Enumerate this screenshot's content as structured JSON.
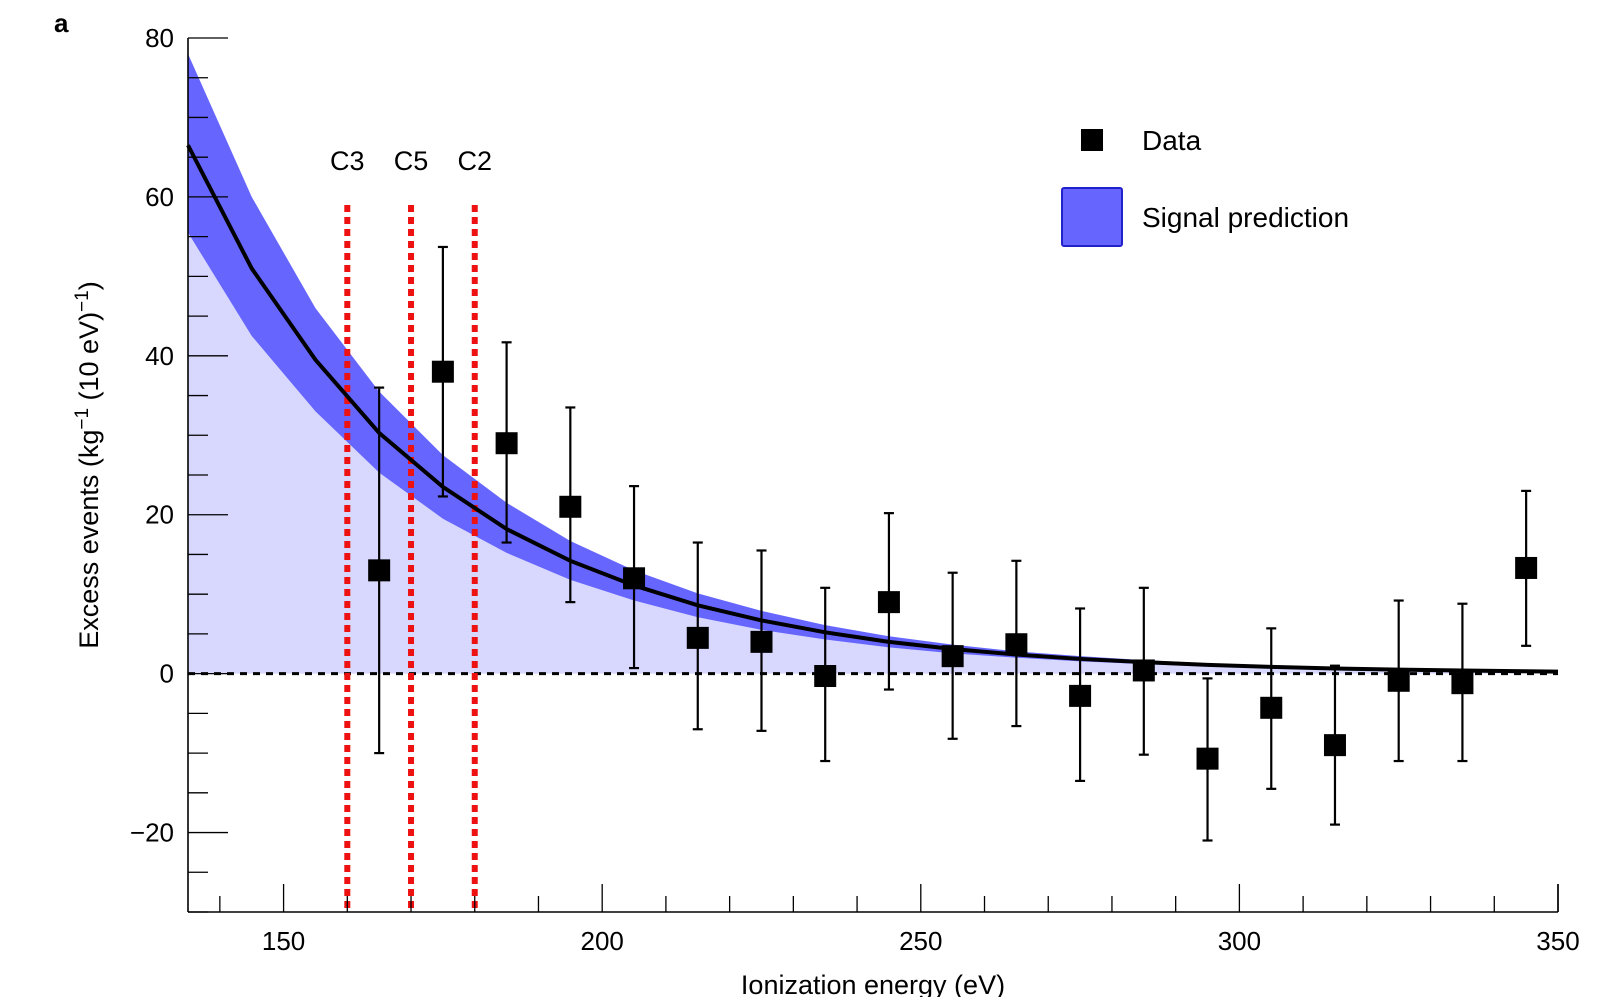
{
  "panel_label": "a",
  "chart_data": {
    "type": "scatter",
    "title": "",
    "xlabel": "Ionization energy (eV)",
    "ylabel_parts": [
      "Excess events (kg",
      "−1",
      " (10 eV)",
      "−1",
      ")"
    ],
    "xlim": [
      135,
      350
    ],
    "ylim": [
      -30,
      80
    ],
    "x_ticks": [
      150,
      200,
      250,
      300,
      350
    ],
    "x_tick_labels": [
      "150",
      "200",
      "250",
      "300",
      "350"
    ],
    "y_ticks": [
      -20,
      0,
      20,
      40,
      60,
      80
    ],
    "y_tick_labels": [
      "−20",
      "0",
      "20",
      "40",
      "60",
      "80"
    ],
    "grid": false,
    "legend_position": "top-right",
    "legend": [
      {
        "name": "Data",
        "marker": "square",
        "color": "#000000"
      },
      {
        "name": "Signal prediction",
        "marker": "band",
        "color": "#6666ff"
      }
    ],
    "series": [
      {
        "name": "Data",
        "kind": "points_with_errorbars",
        "x": [
          165,
          175,
          185,
          195,
          205,
          215,
          225,
          235,
          245,
          255,
          265,
          275,
          285,
          295,
          305,
          315,
          325,
          335,
          345
        ],
        "y": [
          13,
          38,
          29,
          21,
          12,
          4.5,
          4,
          -0.3,
          9,
          2.2,
          3.7,
          -2.8,
          0.4,
          -10.7,
          -4.3,
          -9,
          -0.9,
          -1.2,
          13.3
        ],
        "y_err_low": [
          -10,
          22.3,
          16.5,
          9,
          0.7,
          -7,
          -7.2,
          -11,
          -2,
          -8.2,
          -6.6,
          -13.5,
          -10.2,
          -21,
          -14.5,
          -19,
          -11,
          -11,
          3.5
        ],
        "y_err_high": [
          36,
          53.7,
          41.7,
          33.5,
          23.6,
          16.5,
          15.5,
          10.8,
          20.2,
          12.7,
          14.2,
          8.2,
          10.8,
          -0.6,
          5.7,
          1,
          9.2,
          8.8,
          23
        ]
      },
      {
        "name": "Signal prediction",
        "kind": "band_with_central_line",
        "x": [
          135,
          145,
          155,
          165,
          175,
          185,
          195,
          205,
          215,
          225,
          235,
          245,
          255,
          265,
          275,
          285,
          295,
          305,
          315,
          325,
          335,
          345,
          350
        ],
        "y": [
          66.5,
          51,
          39.5,
          30.3,
          23.5,
          18.2,
          14.2,
          11.1,
          8.6,
          6.7,
          5.2,
          4.0,
          3.1,
          2.4,
          1.85,
          1.45,
          1.1,
          0.85,
          0.65,
          0.5,
          0.4,
          0.3,
          0.25
        ],
        "y_low": [
          55.5,
          42.5,
          33,
          25.3,
          19.5,
          15.2,
          11.8,
          9.2,
          7.1,
          5.5,
          4.3,
          3.3,
          2.55,
          2.0,
          1.55,
          1.2,
          0.9,
          0.7,
          0.55,
          0.42,
          0.32,
          0.25,
          0.2
        ],
        "y_high": [
          78,
          60,
          46,
          35.5,
          27.5,
          21.5,
          16.7,
          13.0,
          10.1,
          7.9,
          6.1,
          4.7,
          3.65,
          2.8,
          2.2,
          1.7,
          1.3,
          1.0,
          0.77,
          0.6,
          0.47,
          0.36,
          0.3
        ]
      }
    ],
    "reference_lines": [
      {
        "label": "C3",
        "x": 160,
        "color": "#ee1111"
      },
      {
        "label": "C5",
        "x": 170,
        "color": "#ee1111"
      },
      {
        "label": "C2",
        "x": 180,
        "color": "#ee1111"
      }
    ],
    "zero_line": {
      "y": 0,
      "style": "dashed",
      "color": "#000000"
    },
    "colors": {
      "band": "#6666ff",
      "band_edge": "#2222cc",
      "fill_below": "#d8d8ff",
      "markers": "#000000",
      "reference": "#ee1111"
    }
  }
}
